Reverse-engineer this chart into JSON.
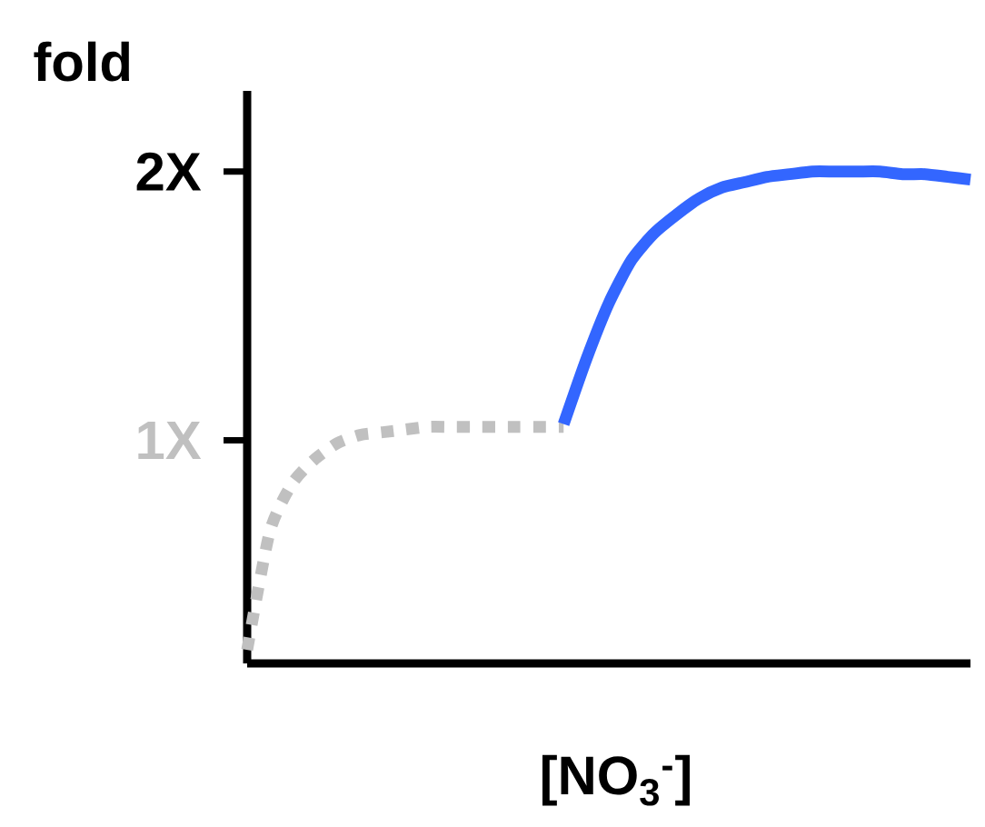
{
  "chart_data": {
    "type": "line",
    "ylabel": "fold",
    "xlabel": "[NO$_{3}$$^{-}$]",
    "categories": [
      null,
      null,
      null,
      null,
      null,
      null,
      null,
      null,
      null,
      null,
      null,
      null,
      null,
      null,
      null,
      null,
      null,
      null,
      null,
      null,
      null,
      null,
      null,
      null,
      null,
      null,
      null,
      null,
      null,
      null,
      null,
      null,
      null
    ],
    "ylim": [
      0.17,
      2.3
    ],
    "yticks": [
      {
        "value": 1,
        "label": "1X"
      },
      {
        "value": 2,
        "label": "2X"
      }
    ],
    "tick_labels": "y",
    "grid": false,
    "marker": "none",
    "series": [
      {
        "color": "#c0c0c0",
        "line_style": "dotted",
        "values": [
          0.22,
          0.66,
          0.84,
          0.93,
          0.99,
          1.02,
          1.03,
          1.04,
          1.05,
          1.05,
          1.05,
          1.05,
          1.05,
          1.05,
          1.05,
          null,
          null,
          null,
          null,
          null,
          null,
          null,
          null,
          null,
          null,
          null,
          null,
          null,
          null,
          null,
          null,
          null,
          null
        ]
      },
      {
        "color": "#3366ff",
        "line_style": "solid",
        "values": [
          null,
          null,
          null,
          null,
          null,
          null,
          null,
          null,
          null,
          null,
          null,
          null,
          null,
          null,
          1.06,
          1.3,
          1.51,
          1.67,
          1.77,
          1.84,
          1.9,
          1.94,
          1.96,
          1.98,
          1.99,
          2.0,
          2.0,
          2.0,
          2.0,
          1.99,
          1.99,
          1.98,
          1.97
        ]
      }
    ]
  }
}
